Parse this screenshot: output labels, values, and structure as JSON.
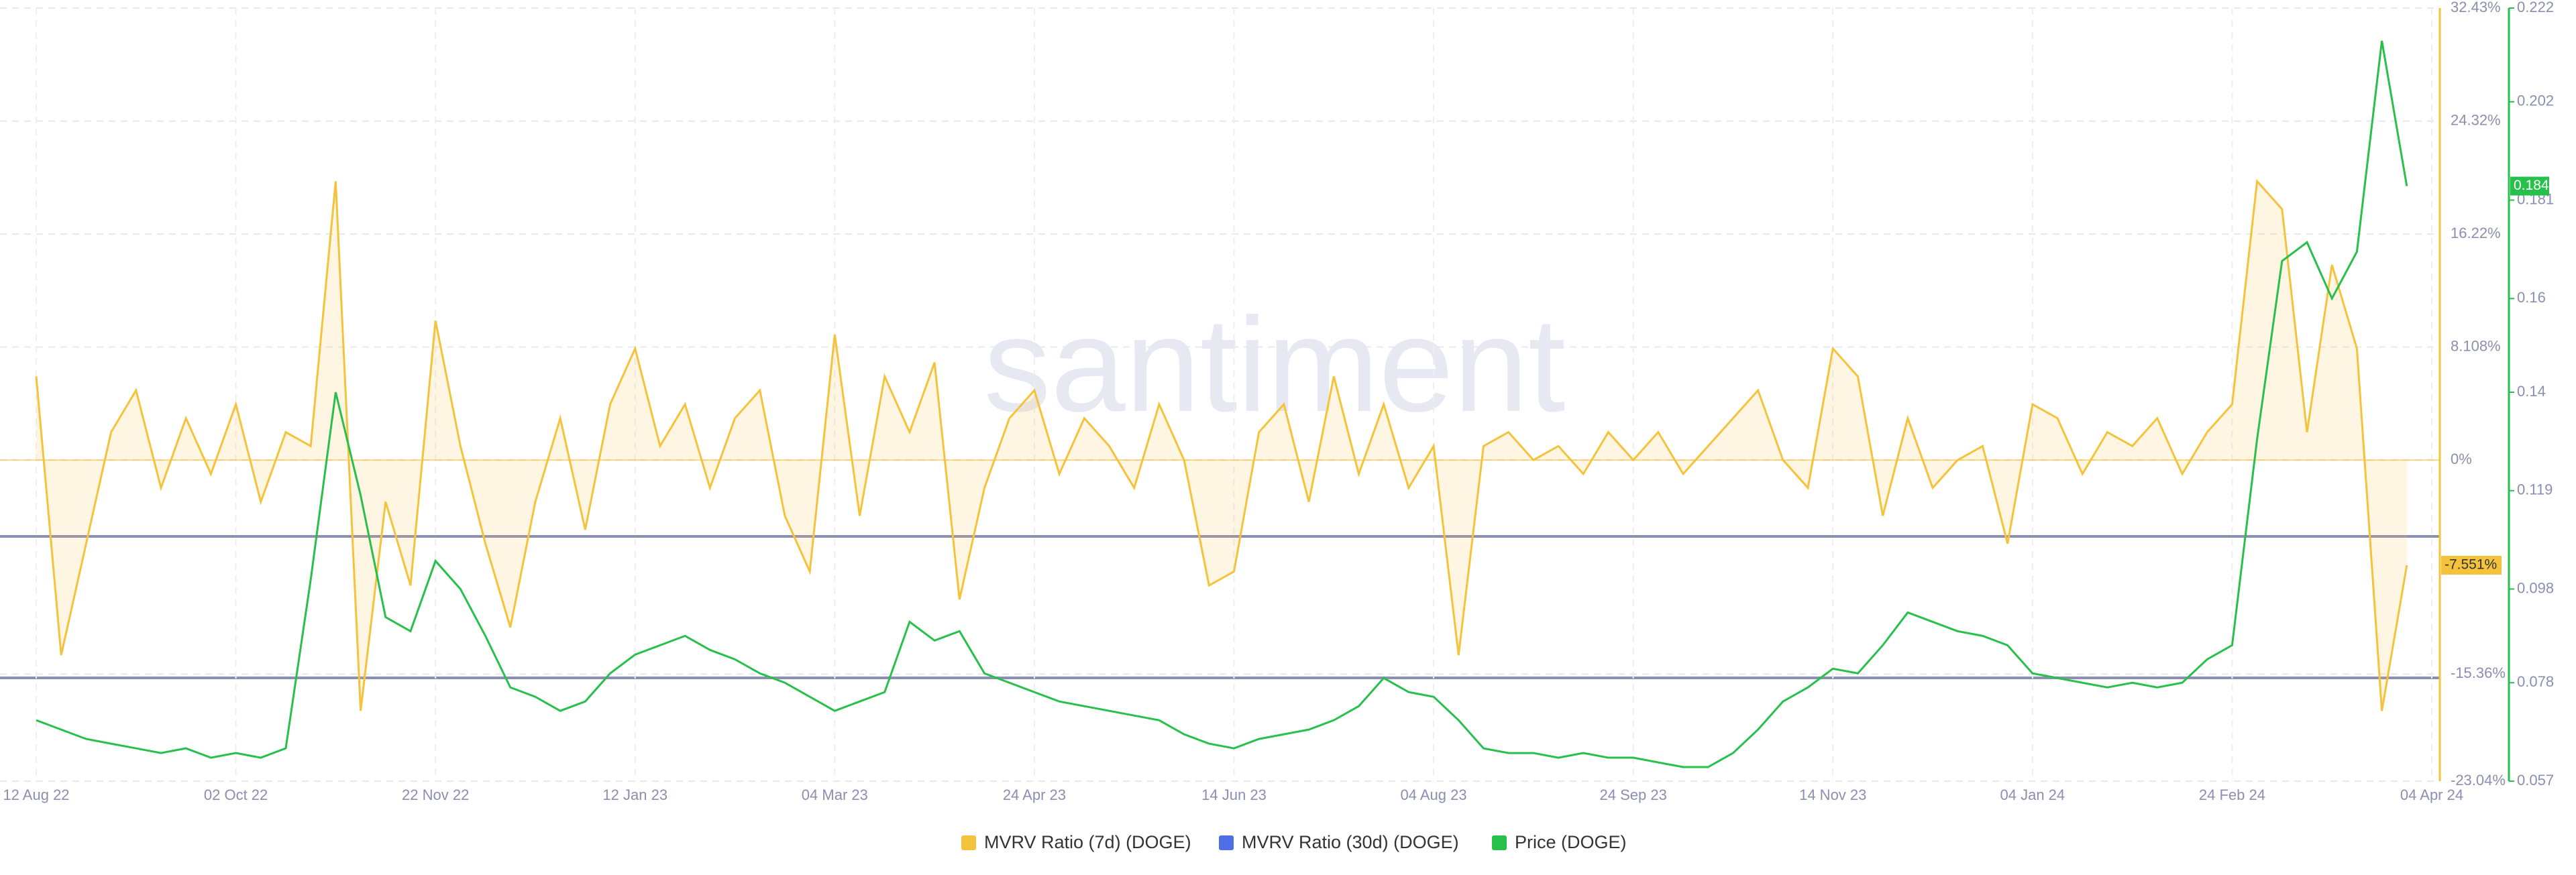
{
  "chart_data": {
    "type": "line",
    "watermark": "santiment",
    "categories": [
      "12 Aug 22",
      null,
      null,
      null,
      null,
      null,
      null,
      null,
      "02 Oct 22",
      null,
      null,
      null,
      null,
      null,
      null,
      null,
      "22 Nov 22",
      null,
      null,
      null,
      null,
      null,
      null,
      null,
      "12 Jan 23",
      null,
      null,
      null,
      null,
      null,
      null,
      null,
      "04 Mar 23",
      null,
      null,
      null,
      null,
      null,
      null,
      null,
      "24 Apr 23",
      null,
      null,
      null,
      null,
      null,
      null,
      null,
      "14 Jun 23",
      null,
      null,
      null,
      null,
      null,
      null,
      null,
      "04 Aug 23",
      null,
      null,
      null,
      null,
      null,
      null,
      null,
      "24 Sep 23",
      null,
      null,
      null,
      null,
      null,
      null,
      null,
      "14 Nov 23",
      null,
      null,
      null,
      null,
      null,
      null,
      null,
      "04 Jan 24",
      null,
      null,
      null,
      null,
      null,
      null,
      null,
      "24 Feb 24",
      null,
      null,
      null,
      null,
      null,
      null,
      null,
      "04 Apr 24"
    ],
    "series": [
      {
        "name": "MVRV Ratio (7d) (DOGE)",
        "color": "#f5c33b",
        "current_value": {
          "value": -7.551,
          "label": "-7.551%"
        },
        "values": [
          6,
          -14,
          -6,
          2,
          5,
          -2,
          3,
          -1,
          4,
          -3,
          2,
          1,
          20,
          -18,
          -3,
          -9,
          10,
          1,
          -6,
          -12,
          -3,
          3,
          -5,
          4,
          8,
          1,
          4,
          -2,
          3,
          5,
          -4,
          -8,
          9,
          -4,
          6,
          2,
          7,
          -10,
          -2,
          3,
          5,
          -1,
          3,
          1,
          -2,
          4,
          0,
          -9,
          -8,
          2,
          4,
          -3,
          6,
          -1,
          4,
          -2,
          1,
          -14,
          1,
          2,
          0,
          1,
          -1,
          2,
          0,
          2,
          -1,
          1,
          3,
          5,
          0,
          -2,
          8,
          6,
          -4,
          3,
          -2,
          0,
          1,
          -6,
          4,
          3,
          -1,
          2,
          1,
          3,
          -1,
          2,
          4,
          20,
          18,
          2,
          14,
          8,
          -18,
          -7.551,
          null
        ]
      },
      {
        "name": "MVRV Ratio (30d) (DOGE)",
        "color": "#4f6fe8"
      },
      {
        "name": "Price (DOGE)",
        "color": "#26c04a",
        "axis": "y2",
        "current_value": {
          "value": 0.184,
          "label": "0.184"
        },
        "values": [
          0.07,
          0.068,
          0.066,
          0.065,
          0.064,
          0.063,
          0.064,
          0.062,
          0.063,
          0.062,
          0.064,
          0.1,
          0.14,
          0.118,
          0.092,
          0.089,
          0.104,
          0.098,
          0.088,
          0.077,
          0.075,
          0.072,
          0.074,
          0.08,
          0.084,
          0.086,
          0.088,
          0.085,
          0.083,
          0.08,
          0.078,
          0.075,
          0.072,
          0.074,
          0.076,
          0.091,
          0.087,
          0.089,
          0.08,
          0.078,
          0.076,
          0.074,
          0.073,
          0.072,
          0.071,
          0.07,
          0.067,
          0.065,
          0.064,
          0.066,
          0.067,
          0.068,
          0.07,
          0.073,
          0.079,
          0.076,
          0.075,
          0.07,
          0.064,
          0.063,
          0.063,
          0.062,
          0.063,
          0.062,
          0.062,
          0.061,
          0.06,
          0.06,
          0.063,
          0.068,
          0.074,
          0.077,
          0.081,
          0.08,
          0.086,
          0.093,
          0.091,
          0.089,
          0.088,
          0.086,
          0.08,
          0.079,
          0.078,
          0.077,
          0.078,
          0.077,
          0.078,
          0.083,
          0.086,
          0.13,
          0.168,
          0.172,
          0.16,
          0.17,
          0.215,
          0.184,
          null
        ]
      }
    ],
    "ylim": [
      -23.04,
      32.43
    ],
    "yticks": [
      {
        "value": 32.43,
        "label": "32.43%"
      },
      {
        "value": 24.32,
        "label": "24.32%"
      },
      {
        "value": 16.22,
        "label": "16.22%"
      },
      {
        "value": 8.108,
        "label": "8.108%"
      },
      {
        "value": 0,
        "label": "0%"
      },
      {
        "value": -15.36,
        "label": "-15.36%"
      },
      {
        "value": -23.04,
        "label": "-23.04%"
      }
    ],
    "y2lim": [
      0.057,
      0.222
    ],
    "y2ticks": [
      0.057,
      0.078,
      0.098,
      0.119,
      0.14,
      0.16,
      0.181,
      0.202,
      0.222
    ],
    "grid": true
  }
}
